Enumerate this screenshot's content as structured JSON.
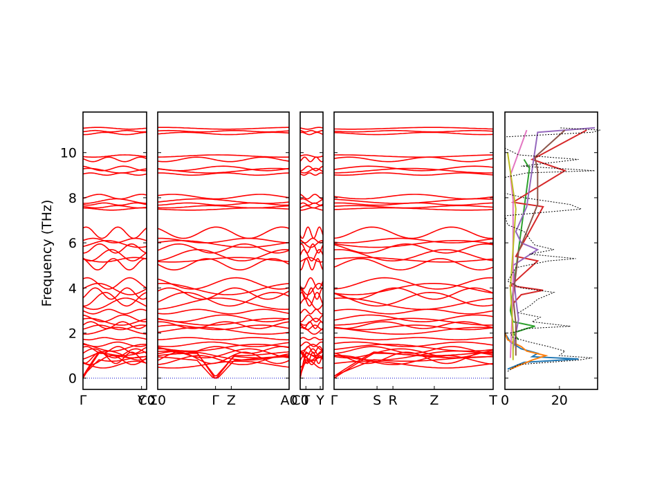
{
  "chart_data": {
    "type": "line",
    "ylabel": "Frequency (THz)",
    "ylim": [
      -0.5,
      11.8
    ],
    "yticks": [
      0,
      2,
      4,
      6,
      8,
      10
    ],
    "colors": {
      "band": "#ff0000",
      "zero_line": "#0000cc",
      "dos_total": "#000000"
    },
    "panels": [
      {
        "xticks": [
          {
            "label": "Γ",
            "pos": 0.0
          },
          {
            "label": "Y",
            "pos": 0.92
          },
          {
            "label": "C0",
            "pos": 1.0
          }
        ]
      },
      {
        "xticks": [
          {
            "label": "Σ0",
            "pos": 0.0
          },
          {
            "label": "Γ",
            "pos": 0.44
          },
          {
            "label": "Z",
            "pos": 0.56
          },
          {
            "label": "A0",
            "pos": 1.0
          }
        ]
      },
      {
        "xticks": [
          {
            "label": "C0",
            "pos": 0.0
          },
          {
            "label": "T",
            "pos": 0.25
          },
          {
            "label": "Y",
            "pos": 0.88
          }
        ]
      },
      {
        "xticks": [
          {
            "label": "Γ",
            "pos": 0.0
          },
          {
            "label": "S",
            "pos": 0.27
          },
          {
            "label": "R",
            "pos": 0.37
          },
          {
            "label": "Z",
            "pos": 0.63
          },
          {
            "label": "T",
            "pos": 1.0
          }
        ]
      }
    ],
    "bands": [
      {
        "base": 0.0,
        "amp": 0.0,
        "acoustic": 1.0
      },
      {
        "base": 0.0,
        "amp": 0.0,
        "acoustic": 1.1
      },
      {
        "base": 0.0,
        "amp": 0.0,
        "acoustic": 0.85
      },
      {
        "base": 0.6,
        "amp": 0.15
      },
      {
        "base": 0.8,
        "amp": 0.2
      },
      {
        "base": 0.9,
        "amp": 0.25
      },
      {
        "base": 1.0,
        "amp": 0.2
      },
      {
        "base": 1.1,
        "amp": 0.2
      },
      {
        "base": 1.25,
        "amp": 0.15
      },
      {
        "base": 1.35,
        "amp": 0.15
      },
      {
        "base": 1.5,
        "amp": 0.1
      },
      {
        "base": 1.75,
        "amp": 0.05
      },
      {
        "base": 2.1,
        "amp": 0.15
      },
      {
        "base": 2.25,
        "amp": 0.1
      },
      {
        "base": 2.35,
        "amp": 0.15
      },
      {
        "base": 2.5,
        "amp": 0.15
      },
      {
        "base": 2.65,
        "amp": 0.15
      },
      {
        "base": 2.95,
        "amp": 0.1
      },
      {
        "base": 3.3,
        "amp": 0.25
      },
      {
        "base": 3.5,
        "amp": 0.3
      },
      {
        "base": 3.75,
        "amp": 0.25
      },
      {
        "base": 3.95,
        "amp": 0.25
      },
      {
        "base": 4.2,
        "amp": 0.25
      },
      {
        "base": 5.05,
        "amp": 0.25
      },
      {
        "base": 5.25,
        "amp": 0.1
      },
      {
        "base": 5.45,
        "amp": 0.25
      },
      {
        "base": 5.75,
        "amp": 0.2
      },
      {
        "base": 5.95,
        "amp": 0.15
      },
      {
        "base": 6.1,
        "amp": 0.1
      },
      {
        "base": 6.45,
        "amp": 0.25
      },
      {
        "base": 7.5,
        "amp": 0.05
      },
      {
        "base": 7.6,
        "amp": 0.05
      },
      {
        "base": 7.72,
        "amp": 0.05
      },
      {
        "base": 7.85,
        "amp": 0.1
      },
      {
        "base": 8.05,
        "amp": 0.1
      },
      {
        "base": 9.05,
        "amp": 0.05
      },
      {
        "base": 9.2,
        "amp": 0.1
      },
      {
        "base": 9.3,
        "amp": 0.1
      },
      {
        "base": 9.7,
        "amp": 0.1
      },
      {
        "base": 9.85,
        "amp": 0.05
      },
      {
        "base": 10.85,
        "amp": 0.05
      },
      {
        "base": 10.95,
        "amp": 0.03
      },
      {
        "base": 11.08,
        "amp": 0.04
      }
    ],
    "dos": {
      "xlim": [
        0,
        34
      ],
      "xticks": [
        0,
        20
      ],
      "total": [
        [
          0.3,
          1
        ],
        [
          0.6,
          5
        ],
        [
          0.8,
          27
        ],
        [
          0.9,
          32
        ],
        [
          1.0,
          20
        ],
        [
          1.2,
          22
        ],
        [
          1.4,
          16
        ],
        [
          1.6,
          9
        ],
        [
          1.8,
          3
        ],
        [
          2.0,
          2
        ],
        [
          2.2,
          8
        ],
        [
          2.3,
          24
        ],
        [
          2.5,
          10
        ],
        [
          2.7,
          13
        ],
        [
          2.9,
          5
        ],
        [
          3.2,
          9
        ],
        [
          3.5,
          12
        ],
        [
          3.8,
          18
        ],
        [
          4.0,
          6
        ],
        [
          4.3,
          1
        ],
        [
          4.9,
          4
        ],
        [
          5.2,
          16
        ],
        [
          5.3,
          26
        ],
        [
          5.5,
          9
        ],
        [
          5.7,
          18
        ],
        [
          5.9,
          11
        ],
        [
          6.2,
          9
        ],
        [
          6.5,
          7
        ],
        [
          6.8,
          1
        ],
        [
          7.2,
          0
        ],
        [
          7.5,
          28
        ],
        [
          7.7,
          24
        ],
        [
          8.0,
          7
        ],
        [
          8.2,
          0
        ],
        [
          8.9,
          0
        ],
        [
          9.1,
          8
        ],
        [
          9.2,
          33
        ],
        [
          9.4,
          6
        ],
        [
          9.7,
          27
        ],
        [
          9.9,
          5
        ],
        [
          10.2,
          0
        ],
        [
          10.7,
          0
        ],
        [
          10.9,
          32
        ],
        [
          11.0,
          35
        ],
        [
          11.1,
          20
        ]
      ],
      "partials": [
        {
          "color": "#1f77b4",
          "points": [
            [
              0.4,
              1
            ],
            [
              0.7,
              7
            ],
            [
              0.85,
              27
            ],
            [
              0.95,
              10
            ],
            [
              1.1,
              12
            ],
            [
              1.3,
              6
            ],
            [
              1.6,
              2
            ],
            [
              2.0,
              0
            ]
          ]
        },
        {
          "color": "#ff7f0e",
          "points": [
            [
              0.4,
              2
            ],
            [
              0.8,
              10
            ],
            [
              1.0,
              15
            ],
            [
              1.2,
              8
            ],
            [
              1.4,
              6
            ],
            [
              1.7,
              1
            ],
            [
              2.0,
              0
            ]
          ]
        },
        {
          "color": "#2ca02c",
          "points": [
            [
              1.7,
              5
            ],
            [
              2.0,
              3
            ],
            [
              2.2,
              8
            ],
            [
              2.3,
              11
            ],
            [
              2.5,
              3
            ],
            [
              3.0,
              2
            ],
            [
              9.3,
              9
            ],
            [
              9.7,
              7
            ]
          ]
        },
        {
          "color": "#d62728",
          "points": [
            [
              3.3,
              3
            ],
            [
              3.7,
              6
            ],
            [
              3.9,
              14
            ],
            [
              4.1,
              2
            ],
            [
              5.2,
              12
            ],
            [
              5.4,
              4
            ],
            [
              7.6,
              14
            ],
            [
              7.8,
              3
            ],
            [
              9.2,
              22
            ],
            [
              9.7,
              10
            ],
            [
              11.0,
              30
            ]
          ]
        },
        {
          "color": "#9467bd",
          "points": [
            [
              1.3,
              3
            ],
            [
              2.6,
              5
            ],
            [
              3.5,
              4
            ],
            [
              5.0,
              3
            ],
            [
              5.7,
              12
            ],
            [
              6.0,
              6
            ],
            [
              6.5,
              4
            ],
            [
              7.6,
              8
            ],
            [
              10.9,
              12
            ],
            [
              11.1,
              33
            ]
          ]
        },
        {
          "color": "#8c564b",
          "points": [
            [
              1.0,
              4
            ],
            [
              2.4,
              4
            ],
            [
              3.6,
              3
            ],
            [
              5.6,
              5
            ],
            [
              7.7,
              12
            ],
            [
              9.2,
              12
            ],
            [
              9.8,
              11
            ],
            [
              11.0,
              22
            ]
          ]
        },
        {
          "color": "#e377c2",
          "points": [
            [
              0.9,
              2
            ],
            [
              3.8,
              3
            ],
            [
              5.3,
              3
            ],
            [
              7.9,
              3
            ],
            [
              9.0,
              2
            ],
            [
              11.0,
              8
            ]
          ]
        },
        {
          "color": "#bcbd22",
          "points": [
            [
              0.8,
              3
            ],
            [
              2.1,
              3
            ],
            [
              4.0,
              2
            ],
            [
              7.5,
              4
            ],
            [
              10.0,
              1
            ]
          ]
        }
      ]
    }
  }
}
